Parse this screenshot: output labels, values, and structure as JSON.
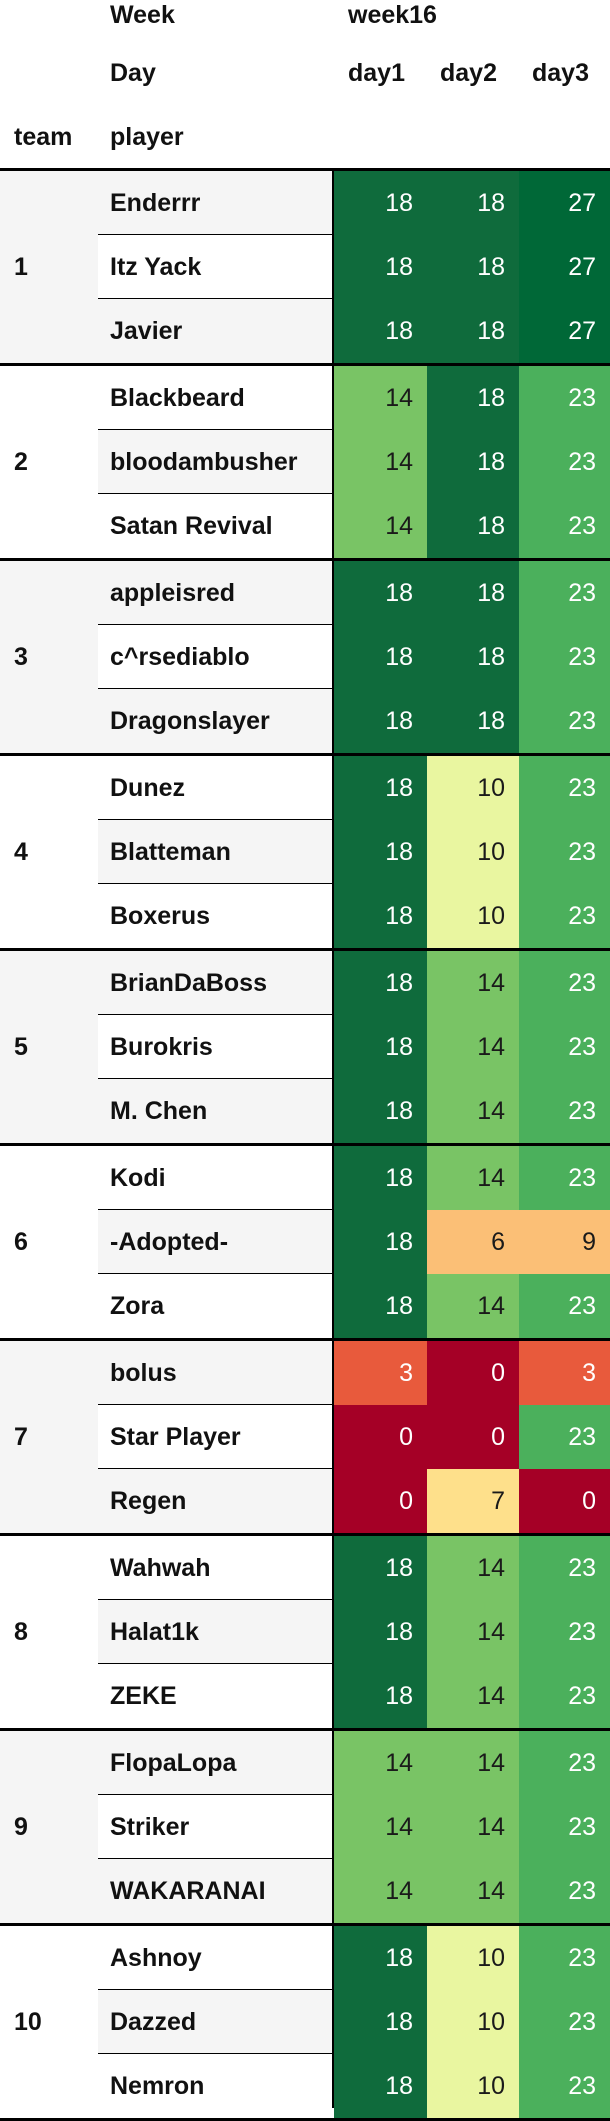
{
  "header": {
    "week_label": "Week",
    "week_value": "week16",
    "day_label": "Day",
    "team_label": "team",
    "player_label": "player"
  },
  "chart_data": {
    "type": "table",
    "columns": [
      "day1",
      "day2",
      "day3"
    ],
    "color_scale": "RdYlGn",
    "value_range": [
      0,
      27
    ],
    "teams": [
      {
        "team": "1",
        "rows": [
          {
            "player": "Enderrr",
            "values": [
              18,
              18,
              27
            ]
          },
          {
            "player": "Itz Yack",
            "values": [
              18,
              18,
              27
            ]
          },
          {
            "player": "Javier",
            "values": [
              18,
              18,
              27
            ]
          }
        ]
      },
      {
        "team": "2",
        "rows": [
          {
            "player": "Blackbeard",
            "values": [
              14,
              18,
              23
            ]
          },
          {
            "player": "bloodambusher",
            "values": [
              14,
              18,
              23
            ]
          },
          {
            "player": "Satan Revival",
            "values": [
              14,
              18,
              23
            ]
          }
        ]
      },
      {
        "team": "3",
        "rows": [
          {
            "player": "appleisred",
            "values": [
              18,
              18,
              23
            ]
          },
          {
            "player": "c^rsediablo",
            "values": [
              18,
              18,
              23
            ]
          },
          {
            "player": "Dragonslayer",
            "values": [
              18,
              18,
              23
            ]
          }
        ]
      },
      {
        "team": "4",
        "rows": [
          {
            "player": "Dunez",
            "values": [
              18,
              10,
              23
            ]
          },
          {
            "player": "Blatteman",
            "values": [
              18,
              10,
              23
            ]
          },
          {
            "player": "Boxerus",
            "values": [
              18,
              10,
              23
            ]
          }
        ]
      },
      {
        "team": "5",
        "rows": [
          {
            "player": "BrianDaBoss",
            "values": [
              18,
              14,
              23
            ]
          },
          {
            "player": "Burokris",
            "values": [
              18,
              14,
              23
            ]
          },
          {
            "player": "M. Chen",
            "values": [
              18,
              14,
              23
            ]
          }
        ]
      },
      {
        "team": "6",
        "rows": [
          {
            "player": "Kodi",
            "values": [
              18,
              14,
              23
            ]
          },
          {
            "player": "-Adopted-",
            "values": [
              18,
              6,
              9
            ]
          },
          {
            "player": "Zora",
            "values": [
              18,
              14,
              23
            ]
          }
        ]
      },
      {
        "team": "7",
        "rows": [
          {
            "player": "bolus",
            "values": [
              3,
              0,
              3
            ]
          },
          {
            "player": "Star Player",
            "values": [
              0,
              0,
              23
            ]
          },
          {
            "player": "Regen",
            "values": [
              0,
              7,
              0
            ]
          }
        ]
      },
      {
        "team": "8",
        "rows": [
          {
            "player": "Wahwah",
            "values": [
              18,
              14,
              23
            ]
          },
          {
            "player": "Halat1k",
            "values": [
              18,
              14,
              23
            ]
          },
          {
            "player": "ZEKE",
            "values": [
              18,
              14,
              23
            ]
          }
        ]
      },
      {
        "team": "9",
        "rows": [
          {
            "player": "FlopaLopa",
            "values": [
              14,
              14,
              23
            ]
          },
          {
            "player": "Striker",
            "values": [
              14,
              14,
              23
            ]
          },
          {
            "player": "WAKARANAI",
            "values": [
              14,
              14,
              23
            ]
          }
        ]
      },
      {
        "team": "10",
        "rows": [
          {
            "player": "Ashnoy",
            "values": [
              18,
              10,
              23
            ]
          },
          {
            "player": "Dazzed",
            "values": [
              18,
              10,
              23
            ]
          },
          {
            "player": "Nemron",
            "values": [
              18,
              10,
              23
            ]
          }
        ]
      }
    ]
  },
  "colors": {
    "27": "#006837",
    "23": "#4bb05c",
    "18": "#0f6b3c",
    "14": "#79c465",
    "10": "#e9f6a0",
    "9": "#fbbf76",
    "7": "#fee08b",
    "6": "#fbbf76",
    "3": "#e85a3c",
    "0": "#a50026",
    "text_dark": "#1a1a1a",
    "text_light": "#ffffff",
    "row_alt": "#f5f5f5",
    "row_plain": "#ffffff"
  }
}
